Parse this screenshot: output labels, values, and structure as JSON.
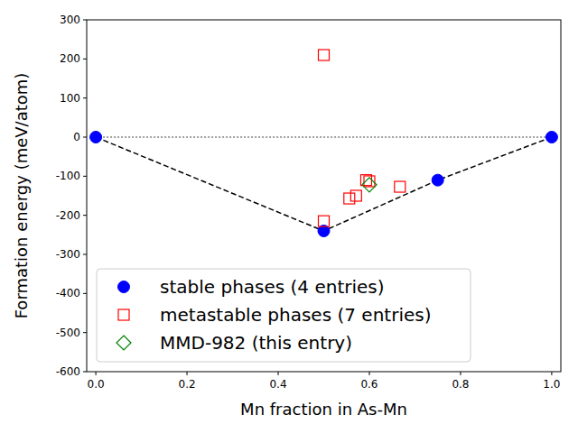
{
  "chart_data": {
    "type": "scatter",
    "xlabel": "Mn fraction in As-Mn",
    "ylabel": "Formation energy (meV/atom)",
    "xlim": [
      -0.02,
      1.02
    ],
    "ylim": [
      -600,
      300
    ],
    "xticks": [
      {
        "value": 0,
        "label": "0.0"
      },
      {
        "value": 0.2,
        "label": "0.2"
      },
      {
        "value": 0.4,
        "label": "0.4"
      },
      {
        "value": 0.6,
        "label": "0.6"
      },
      {
        "value": 0.8,
        "label": "0.8"
      },
      {
        "value": 1,
        "label": "1.0"
      }
    ],
    "yticks": [
      -600,
      -500,
      -400,
      -300,
      -200,
      -100,
      0,
      100,
      200,
      300
    ],
    "legend": "lower left",
    "series": [
      {
        "type": "line",
        "line_style": "dotted",
        "color": "#808080",
        "x": [
          0,
          1
        ],
        "values": [
          0,
          0
        ]
      },
      {
        "type": "line",
        "line_style": "dashed",
        "color": "#000000",
        "x": [
          0,
          0.5,
          0.75,
          1
        ],
        "values": [
          0,
          -240,
          -110,
          0
        ]
      },
      {
        "name": "stable phases (4 entries)",
        "type": "scatter",
        "marker": "circle",
        "color": "#0000ff",
        "x": [
          0,
          0.5,
          0.75,
          1
        ],
        "values": [
          0,
          -240,
          -110,
          0
        ]
      },
      {
        "name": "metastable phases (7 entries)",
        "type": "scatter",
        "marker": "square",
        "color": "#ff0000",
        "x": [
          0.5,
          0.5,
          0.556,
          0.571,
          0.593,
          0.6,
          0.667
        ],
        "values": [
          210,
          -215,
          -157,
          -150,
          -110,
          -113,
          -127
        ]
      },
      {
        "name": "MMD-982 (this entry)",
        "type": "scatter",
        "marker": "diamond",
        "color": "#008000",
        "x": [
          0.6
        ],
        "values": [
          -122
        ]
      }
    ]
  }
}
